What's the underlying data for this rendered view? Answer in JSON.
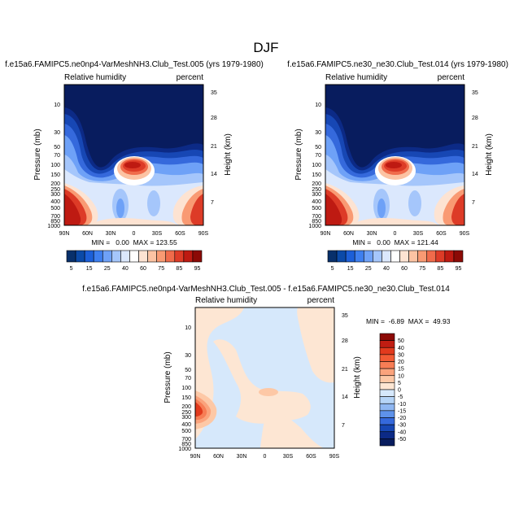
{
  "figure_title": "DJF",
  "chart_data": [
    {
      "type": "heatmap",
      "title": "f.e15a6.FAMIPC5.ne0np4-VarMeshNH3.Club_Test.005 (yrs 1979-1980)",
      "left_label": "Relative humidity",
      "right_label": "percent",
      "ylabel": "Pressure (mb)",
      "ylabel_right": "Height (km)",
      "x_ticks": [
        "90N",
        "60N",
        "30N",
        "0",
        "30S",
        "60S",
        "90S"
      ],
      "y_ticks": [
        "10",
        "30",
        "50",
        "70",
        "100",
        "150",
        "200",
        "250",
        "300",
        "400",
        "500",
        "700",
        "850",
        "1000"
      ],
      "y_ticks_right": [
        "35",
        "28",
        "21",
        "14",
        "7"
      ],
      "stats": "MIN =   0.00  MAX = 123.55",
      "min": 0.0,
      "max": 123.55
    },
    {
      "type": "heatmap",
      "title": "f.e15a6.FAMIPC5.ne30_ne30.Club_Test.014 (yrs 1979-1980)",
      "left_label": "Relative humidity",
      "right_label": "percent",
      "ylabel": "Pressure (mb)",
      "ylabel_right": "Height (km)",
      "x_ticks": [
        "90N",
        "60N",
        "30N",
        "0",
        "30S",
        "60S",
        "90S"
      ],
      "y_ticks": [
        "10",
        "30",
        "50",
        "70",
        "100",
        "150",
        "200",
        "250",
        "300",
        "400",
        "500",
        "700",
        "850",
        "1000"
      ],
      "y_ticks_right": [
        "35",
        "28",
        "21",
        "14",
        "7"
      ],
      "stats": "MIN =   0.00  MAX = 121.44",
      "min": 0.0,
      "max": 121.44
    },
    {
      "type": "heatmap",
      "title": "f.e15a6.FAMIPC5.ne0np4-VarMeshNH3.Club_Test.005 - f.e15a6.FAMIPC5.ne30_ne30.Club_Test.014",
      "left_label": "Relative humidity",
      "right_label": "percent",
      "ylabel": "Pressure (mb)",
      "ylabel_right": "Height (km)",
      "x_ticks": [
        "90N",
        "60N",
        "30N",
        "0",
        "30S",
        "60S",
        "90S"
      ],
      "y_ticks": [
        "10",
        "30",
        "50",
        "70",
        "100",
        "150",
        "200",
        "250",
        "300",
        "400",
        "500",
        "700",
        "850",
        "1000"
      ],
      "y_ticks_right": [
        "35",
        "28",
        "21",
        "14",
        "7"
      ],
      "stats": "MIN =  -6.89  MAX =  49.93",
      "min": -6.89,
      "max": 49.93
    }
  ],
  "colorbar_main": {
    "labels": [
      "5",
      "15",
      "25",
      "40",
      "60",
      "75",
      "85",
      "95"
    ],
    "colors": [
      "#08306b",
      "#0b4aa8",
      "#1c5fd8",
      "#3e7fef",
      "#6ea1f7",
      "#a5c6fb",
      "#dbe8fd",
      "#ffffff",
      "#fde3d2",
      "#fcc3a3",
      "#f99a73",
      "#f06b4b",
      "#dd3b27",
      "#be1a12",
      "#8c0a06"
    ]
  },
  "colorbar_diff": {
    "labels": [
      "50",
      "40",
      "30",
      "20",
      "15",
      "10",
      "5",
      "0",
      "-5",
      "-10",
      "-15",
      "-20",
      "-30",
      "-40",
      "-50"
    ],
    "colors": [
      "#8c0a06",
      "#c01d12",
      "#e23a1d",
      "#f25b34",
      "#f77d55",
      "#fba37c",
      "#fdc8a6",
      "#fde6d3",
      "#d6e8fb",
      "#b5d4f7",
      "#8fb7f2",
      "#5e92ea",
      "#3569dc",
      "#1747b4",
      "#0c2a86",
      "#081c5e"
    ]
  }
}
